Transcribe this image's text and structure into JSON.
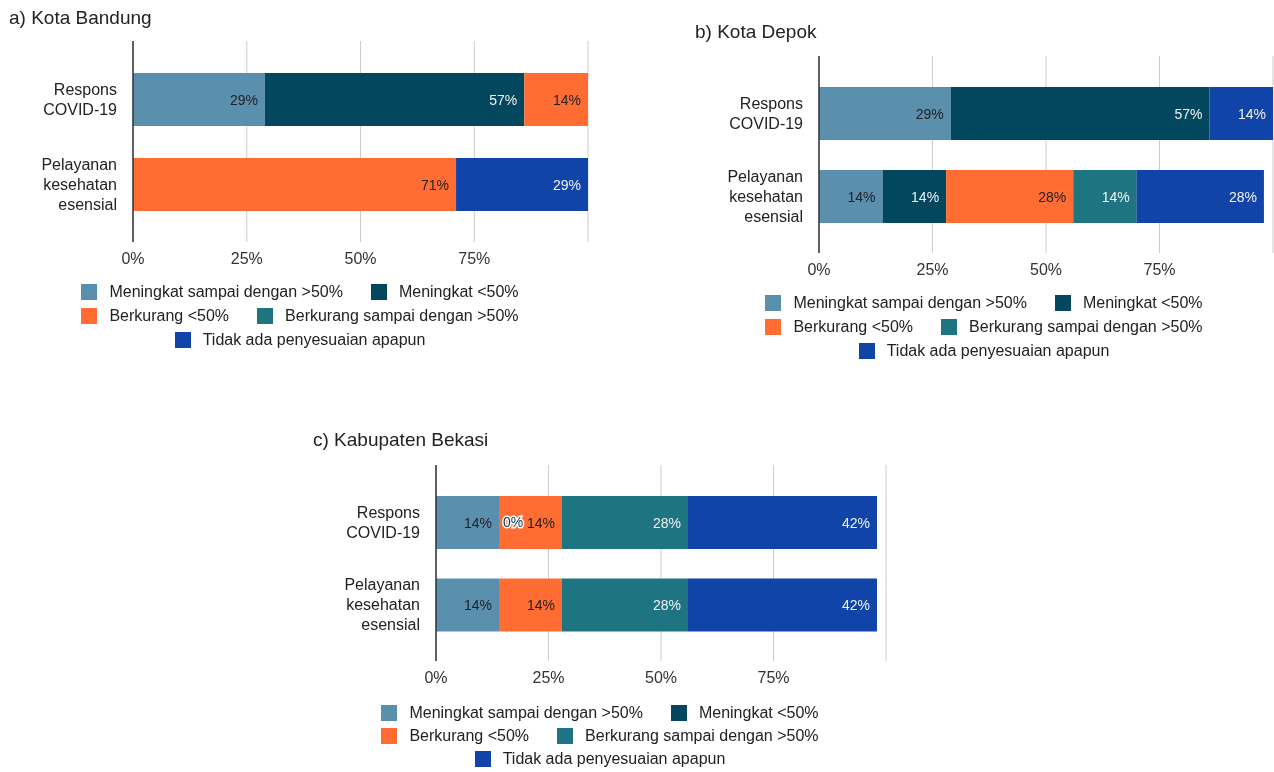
{
  "chart_data": [
    {
      "type": "bar",
      "title": "a) Kota Bandung",
      "orientation": "horizontal",
      "stacked": true,
      "categories": [
        "Respons COVID-19",
        "Pelayanan kesehatan esensial"
      ],
      "series": [
        {
          "name": "Meningkat sampai dengan >50%",
          "color": "#5b8fae",
          "values": [
            29,
            null
          ],
          "value_labels": [
            "29%",
            null
          ]
        },
        {
          "name": "Meningkat <50%",
          "color": "#03475f",
          "values": [
            57,
            null
          ],
          "value_labels": [
            "57%",
            null
          ]
        },
        {
          "name": "Berkurang <50%",
          "color": "#ff6d33",
          "values": [
            14,
            71
          ],
          "value_labels": [
            "14%",
            "71%"
          ]
        },
        {
          "name": "Berkurang sampai dengan >50%",
          "color": "#1e7481",
          "values": [
            null,
            null
          ]
        },
        {
          "name": "Tidak ada penyesuaian apapun",
          "color": "#1144a8",
          "values": [
            null,
            29
          ],
          "value_labels": [
            null,
            "29%"
          ]
        }
      ],
      "xlim": [
        0,
        100
      ],
      "xticks": [
        {
          "value": 0,
          "label": "0%"
        },
        {
          "value": 25,
          "label": "25%"
        },
        {
          "value": 50,
          "label": "50%"
        },
        {
          "value": 75,
          "label": "75%"
        },
        {
          "value": 100,
          "label": null
        }
      ],
      "grid": "x",
      "legend": "bottom"
    },
    {
      "type": "bar",
      "title": "b) Kota Depok",
      "orientation": "horizontal",
      "stacked": true,
      "categories": [
        "Respons COVID-19",
        "Pelayanan kesehatan esensial"
      ],
      "series": [
        {
          "name": "Meningkat sampai dengan >50%",
          "color": "#5b8fae",
          "values": [
            29,
            14
          ],
          "value_labels": [
            "29%",
            "14%"
          ]
        },
        {
          "name": "Meningkat <50%",
          "color": "#03475f",
          "values": [
            57,
            14
          ],
          "value_labels": [
            "57%",
            "14%"
          ]
        },
        {
          "name": "Berkurang <50%",
          "color": "#ff6d33",
          "values": [
            null,
            28
          ],
          "value_labels": [
            null,
            "28%"
          ]
        },
        {
          "name": "Berkurang sampai dengan >50%",
          "color": "#1e7481",
          "values": [
            null,
            14
          ],
          "value_labels": [
            null,
            "14%"
          ]
        },
        {
          "name": "Tidak ada penyesuaian apapun",
          "color": "#1144a8",
          "values": [
            14,
            28
          ],
          "value_labels": [
            "14%",
            "28%"
          ]
        }
      ],
      "xlim": [
        0,
        100
      ],
      "xticks": [
        {
          "value": 0,
          "label": "0%"
        },
        {
          "value": 25,
          "label": "25%"
        },
        {
          "value": 50,
          "label": "50%"
        },
        {
          "value": 75,
          "label": "75%"
        },
        {
          "value": 100,
          "label": null
        }
      ],
      "grid": "x",
      "legend": "bottom"
    },
    {
      "type": "bar",
      "title": "c) Kabupaten Bekasi",
      "orientation": "horizontal",
      "stacked": true,
      "categories": [
        "Respons COVID-19",
        "Pelayanan kesehatan esensial"
      ],
      "series": [
        {
          "name": "Meningkat sampai dengan >50%",
          "color": "#5b8fae",
          "values": [
            14,
            14
          ],
          "value_labels": [
            "14%",
            "14%"
          ]
        },
        {
          "name": "Meningkat <50%",
          "color": "#03475f",
          "values": [
            null,
            null
          ]
        },
        {
          "name": "Berkurang <50%",
          "color": "#ff6d33",
          "values": [
            14,
            14
          ],
          "value_labels": [
            "14%",
            "14%"
          ]
        },
        {
          "name": "Berkurang sampai dengan >50%",
          "color": "#1e7481",
          "values": [
            28,
            28
          ],
          "value_labels": [
            "28%",
            "28%"
          ]
        },
        {
          "name": "Tidak ada penyesuaian apapun",
          "color": "#1144a8",
          "values": [
            42,
            42
          ],
          "value_labels": [
            "42%",
            "42%"
          ]
        }
      ],
      "annotations": [
        {
          "text": "0%",
          "x": 14,
          "y": "Respons COVID-19"
        }
      ],
      "xlim": [
        0,
        100
      ],
      "xticks": [
        {
          "value": 0,
          "label": "0%"
        },
        {
          "value": 25,
          "label": "25%"
        },
        {
          "value": 50,
          "label": "50%"
        },
        {
          "value": 75,
          "label": "75%"
        },
        {
          "value": 100,
          "label": null
        }
      ],
      "grid": "x",
      "legend": "bottom"
    }
  ]
}
